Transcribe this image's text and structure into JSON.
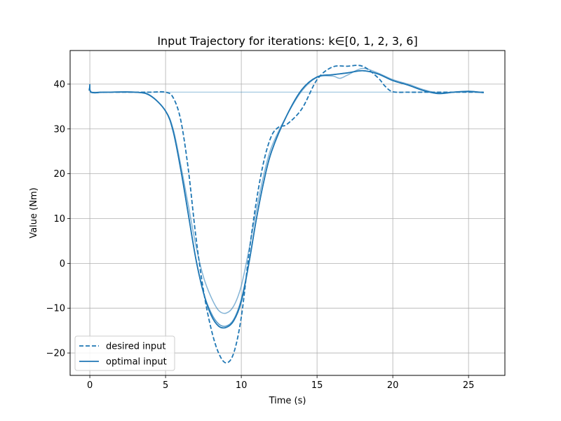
{
  "chart_data": {
    "type": "line",
    "title": "Input Trajectory for iterations: k∈[0, 1, 2, 3, 6]",
    "xlabel": "Time (s)",
    "ylabel": "Value (Nm)",
    "xlim": [
      -1.3,
      27.4
    ],
    "ylim": [
      -25.0,
      47.5
    ],
    "xticks": [
      0,
      5,
      10,
      15,
      20,
      25
    ],
    "yticks": [
      -20,
      -10,
      0,
      10,
      20,
      30,
      40
    ],
    "ytick_labels": [
      "−20",
      "−10",
      "0",
      "10",
      "20",
      "30",
      "40"
    ],
    "grid": true,
    "legend_position": "lower-left",
    "legend": [
      {
        "label": "desired input",
        "style": "dashed",
        "color": "#1f77b4"
      },
      {
        "label": "optimal input",
        "style": "solid",
        "color": "#1f77b4"
      }
    ],
    "series": [
      {
        "key": "k0",
        "color": "#1f77b4",
        "opacity": 0.35,
        "width": 1.5,
        "dash": false,
        "x": [
          0,
          26
        ],
        "y": [
          38.2,
          38.2
        ]
      },
      {
        "key": "k1",
        "color": "#1f77b4",
        "opacity": 0.55,
        "width": 1.5,
        "dash": false,
        "x": [
          0,
          0.1,
          1,
          3,
          4,
          5,
          5.5,
          6,
          6.5,
          7,
          7.5,
          8,
          8.5,
          9,
          9.5,
          10,
          10.5,
          11,
          11.5,
          12,
          13,
          14,
          15,
          16,
          16.5,
          17,
          18,
          19,
          20,
          21,
          22,
          23,
          24,
          25,
          26
        ],
        "y": [
          39.8,
          38.2,
          38.2,
          38.2,
          37.5,
          34,
          30,
          22,
          13,
          4,
          -3,
          -7.5,
          -10.5,
          -11.1,
          -9.5,
          -5,
          3,
          12,
          20,
          26,
          33,
          38.5,
          41.5,
          41.8,
          41.3,
          42,
          43.5,
          42.5,
          41,
          40,
          38.8,
          38,
          38.2,
          38.3,
          38.1
        ]
      },
      {
        "key": "k2",
        "color": "#1f77b4",
        "opacity": 0.75,
        "width": 1.5,
        "dash": false,
        "x": [
          0,
          0.1,
          1,
          3,
          4,
          5,
          5.5,
          6,
          6.5,
          7,
          7.5,
          8,
          8.5,
          9,
          9.5,
          10,
          10.5,
          11,
          11.5,
          12,
          13,
          14,
          15,
          16,
          17,
          18,
          19,
          20,
          21,
          22,
          23,
          24,
          25,
          26
        ],
        "y": [
          40,
          38.2,
          38.2,
          38.2,
          37.4,
          34,
          29.5,
          21,
          11,
          1,
          -6.5,
          -11,
          -13.5,
          -14,
          -12.5,
          -8,
          0,
          10,
          18.5,
          25,
          33,
          38.8,
          41.6,
          42.1,
          42.5,
          43,
          42.3,
          40.8,
          39.8,
          38.6,
          37.9,
          38.2,
          38.4,
          38.1
        ]
      },
      {
        "key": "k6",
        "color": "#1f77b4",
        "opacity": 1.0,
        "width": 1.8,
        "dash": false,
        "x": [
          0,
          0.1,
          1,
          3,
          4,
          5,
          5.5,
          6,
          6.5,
          7,
          7.5,
          8,
          8.5,
          9,
          9.5,
          10,
          10.5,
          11,
          11.5,
          12,
          13,
          14,
          15,
          16,
          17,
          18,
          19,
          20,
          21,
          22,
          23,
          24,
          25,
          26
        ],
        "y": [
          40,
          38.2,
          38.2,
          38.2,
          37.4,
          34,
          29.5,
          21,
          11,
          1,
          -6.5,
          -11.5,
          -14,
          -14.3,
          -12.8,
          -8.5,
          0,
          10,
          18.5,
          25,
          33,
          38.8,
          41.6,
          42.1,
          42.5,
          43,
          42.3,
          40.8,
          39.8,
          38.6,
          37.9,
          38.2,
          38.4,
          38.1
        ]
      },
      {
        "key": "desired",
        "color": "#1f77b4",
        "opacity": 1.0,
        "width": 1.8,
        "dash": true,
        "x": [
          0,
          0.05,
          1,
          3,
          4,
          5,
          5.5,
          6,
          6.5,
          7,
          7.5,
          8,
          8.5,
          9,
          9.5,
          10,
          10.5,
          11,
          11.5,
          12,
          12.5,
          13,
          14,
          15,
          16,
          17,
          18,
          19,
          19.5,
          20,
          21,
          22,
          23,
          24,
          25,
          26
        ],
        "y": [
          39.5,
          38.2,
          38.2,
          38.2,
          38.2,
          38.2,
          37,
          32,
          21,
          6,
          -6,
          -14.5,
          -20,
          -22.2,
          -20,
          -12,
          2,
          14,
          23,
          28.5,
          30.5,
          31,
          34.5,
          41,
          43.8,
          44,
          44,
          41.5,
          39.5,
          38.3,
          38.2,
          38.2,
          38.2,
          38.2,
          38.2,
          38.2
        ]
      }
    ]
  }
}
